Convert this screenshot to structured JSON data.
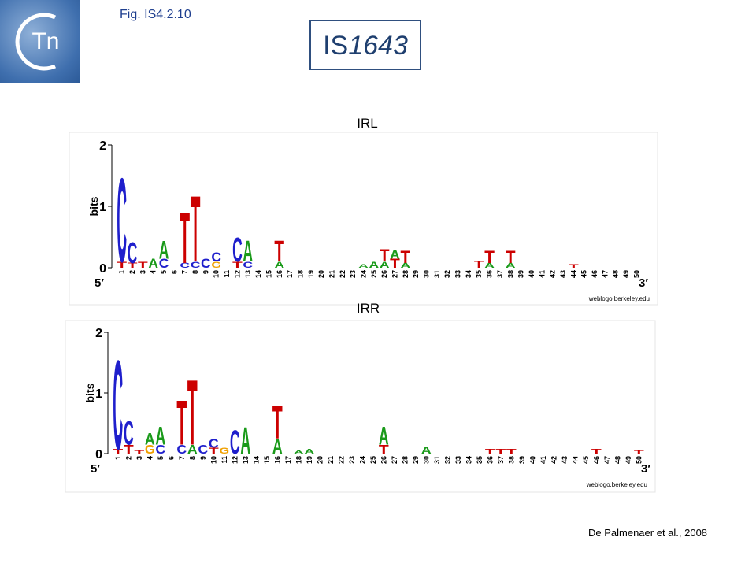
{
  "header": {
    "logo_text": "Tn",
    "fig_label": "Fig. IS4.2.10",
    "title_prefix": "IS",
    "title_number": "1643"
  },
  "colors": {
    "A": "#1a9a1a",
    "C": "#1f1fcc",
    "G": "#f0a000",
    "T": "#cc0000"
  },
  "logos": [
    {
      "title": "IRL",
      "ylabel": "bits",
      "ylim": [
        0,
        2
      ],
      "yticks": [
        0,
        1,
        2
      ],
      "end5": "5′",
      "end3": "3′",
      "credit": "weblogo.berkeley.edu",
      "positions": [
        1,
        2,
        3,
        4,
        5,
        6,
        7,
        8,
        9,
        10,
        11,
        12,
        13,
        14,
        15,
        16,
        17,
        18,
        19,
        20,
        21,
        22,
        23,
        24,
        25,
        26,
        27,
        28,
        29,
        30,
        31,
        32,
        33,
        34,
        35,
        36,
        37,
        38,
        39,
        40,
        41,
        42,
        43,
        44,
        45,
        46,
        47,
        48,
        49,
        50
      ],
      "stacks": [
        {
          "position": 1,
          "letters": [
            {
              "letter": "T",
              "bits": 0.1
            },
            {
              "letter": "C",
              "bits": 1.4
            }
          ]
        },
        {
          "position": 2,
          "letters": [
            {
              "letter": "T",
              "bits": 0.08
            },
            {
              "letter": "C",
              "bits": 0.35
            }
          ]
        },
        {
          "position": 3,
          "letters": [
            {
              "letter": "T",
              "bits": 0.1
            }
          ]
        },
        {
          "position": 4,
          "letters": [
            {
              "letter": "A",
              "bits": 0.15
            }
          ]
        },
        {
          "position": 5,
          "letters": [
            {
              "letter": "C",
              "bits": 0.15
            },
            {
              "letter": "A",
              "bits": 0.3
            }
          ]
        },
        {
          "position": 7,
          "letters": [
            {
              "letter": "C",
              "bits": 0.08
            },
            {
              "letter": "T",
              "bits": 0.85
            }
          ]
        },
        {
          "position": 8,
          "letters": [
            {
              "letter": "C",
              "bits": 0.1
            },
            {
              "letter": "T",
              "bits": 1.1
            }
          ]
        },
        {
          "position": 9,
          "letters": [
            {
              "letter": "C",
              "bits": 0.15
            }
          ]
        },
        {
          "position": 10,
          "letters": [
            {
              "letter": "G",
              "bits": 0.1
            },
            {
              "letter": "C",
              "bits": 0.15
            }
          ]
        },
        {
          "position": 12,
          "letters": [
            {
              "letter": "T",
              "bits": 0.1
            },
            {
              "letter": "C",
              "bits": 0.4
            }
          ]
        },
        {
          "position": 13,
          "letters": [
            {
              "letter": "C",
              "bits": 0.1
            },
            {
              "letter": "A",
              "bits": 0.35
            }
          ]
        },
        {
          "position": 16,
          "letters": [
            {
              "letter": "A",
              "bits": 0.1
            },
            {
              "letter": "T",
              "bits": 0.35
            }
          ]
        },
        {
          "position": 24,
          "letters": [
            {
              "letter": "A",
              "bits": 0.06
            }
          ]
        },
        {
          "position": 25,
          "letters": [
            {
              "letter": "A",
              "bits": 0.1
            }
          ]
        },
        {
          "position": 26,
          "letters": [
            {
              "letter": "A",
              "bits": 0.1
            },
            {
              "letter": "T",
              "bits": 0.2
            }
          ]
        },
        {
          "position": 27,
          "letters": [
            {
              "letter": "T",
              "bits": 0.15
            },
            {
              "letter": "A",
              "bits": 0.15
            }
          ]
        },
        {
          "position": 28,
          "letters": [
            {
              "letter": "A",
              "bits": 0.08
            },
            {
              "letter": "T",
              "bits": 0.2
            }
          ]
        },
        {
          "position": 35,
          "letters": [
            {
              "letter": "T",
              "bits": 0.12
            }
          ]
        },
        {
          "position": 36,
          "letters": [
            {
              "letter": "A",
              "bits": 0.08
            },
            {
              "letter": "T",
              "bits": 0.2
            }
          ]
        },
        {
          "position": 38,
          "letters": [
            {
              "letter": "A",
              "bits": 0.08
            },
            {
              "letter": "T",
              "bits": 0.2
            }
          ]
        },
        {
          "position": 44,
          "letters": [
            {
              "letter": "T",
              "bits": 0.06
            }
          ]
        }
      ]
    },
    {
      "title": "IRR",
      "ylabel": "bits",
      "ylim": [
        0,
        2
      ],
      "yticks": [
        0,
        1,
        2
      ],
      "end5": "5′",
      "end3": "3′",
      "credit": "weblogo.berkeley.edu",
      "positions": [
        1,
        2,
        3,
        4,
        5,
        6,
        7,
        8,
        9,
        10,
        11,
        12,
        13,
        14,
        15,
        16,
        17,
        18,
        19,
        20,
        21,
        22,
        23,
        24,
        25,
        26,
        27,
        28,
        29,
        30,
        31,
        32,
        33,
        34,
        35,
        36,
        37,
        38,
        39,
        40,
        41,
        42,
        43,
        44,
        45,
        46,
        47,
        48,
        49,
        50
      ],
      "stacks": [
        {
          "position": 1,
          "letters": [
            {
              "letter": "T",
              "bits": 0.08
            },
            {
              "letter": "C",
              "bits": 1.5
            }
          ]
        },
        {
          "position": 2,
          "letters": [
            {
              "letter": "T",
              "bits": 0.15
            },
            {
              "letter": "C",
              "bits": 0.4
            }
          ]
        },
        {
          "position": 3,
          "letters": [
            {
              "letter": "T",
              "bits": 0.05
            }
          ]
        },
        {
          "position": 4,
          "letters": [
            {
              "letter": "G",
              "bits": 0.15
            },
            {
              "letter": "A",
              "bits": 0.2
            }
          ]
        },
        {
          "position": 5,
          "letters": [
            {
              "letter": "C",
              "bits": 0.15
            },
            {
              "letter": "A",
              "bits": 0.3
            }
          ]
        },
        {
          "position": 7,
          "letters": [
            {
              "letter": "C",
              "bits": 0.15
            },
            {
              "letter": "T",
              "bits": 0.75
            }
          ]
        },
        {
          "position": 8,
          "letters": [
            {
              "letter": "A",
              "bits": 0.15
            },
            {
              "letter": "T",
              "bits": 1.1
            }
          ]
        },
        {
          "position": 9,
          "letters": [
            {
              "letter": "C",
              "bits": 0.15
            }
          ]
        },
        {
          "position": 10,
          "letters": [
            {
              "letter": "T",
              "bits": 0.1
            },
            {
              "letter": "C",
              "bits": 0.15
            }
          ]
        },
        {
          "position": 11,
          "letters": [
            {
              "letter": "G",
              "bits": 0.1
            }
          ]
        },
        {
          "position": 12,
          "letters": [
            {
              "letter": "C",
              "bits": 0.4
            }
          ]
        },
        {
          "position": 13,
          "letters": [
            {
              "letter": "A",
              "bits": 0.45
            }
          ]
        },
        {
          "position": 16,
          "letters": [
            {
              "letter": "A",
              "bits": 0.25
            },
            {
              "letter": "T",
              "bits": 0.55
            }
          ]
        },
        {
          "position": 18,
          "letters": [
            {
              "letter": "A",
              "bits": 0.05
            }
          ]
        },
        {
          "position": 19,
          "letters": [
            {
              "letter": "A",
              "bits": 0.08
            }
          ]
        },
        {
          "position": 26,
          "letters": [
            {
              "letter": "T",
              "bits": 0.15
            },
            {
              "letter": "A",
              "bits": 0.3
            }
          ]
        },
        {
          "position": 30,
          "letters": [
            {
              "letter": "A",
              "bits": 0.12
            }
          ]
        },
        {
          "position": 36,
          "letters": [
            {
              "letter": "T",
              "bits": 0.08
            }
          ]
        },
        {
          "position": 37,
          "letters": [
            {
              "letter": "T",
              "bits": 0.08
            }
          ]
        },
        {
          "position": 38,
          "letters": [
            {
              "letter": "T",
              "bits": 0.08
            }
          ]
        },
        {
          "position": 46,
          "letters": [
            {
              "letter": "T",
              "bits": 0.08
            }
          ]
        },
        {
          "position": 50,
          "letters": [
            {
              "letter": "T",
              "bits": 0.05
            }
          ]
        }
      ]
    }
  ],
  "citation": "De Palmenaer et al., 2008"
}
